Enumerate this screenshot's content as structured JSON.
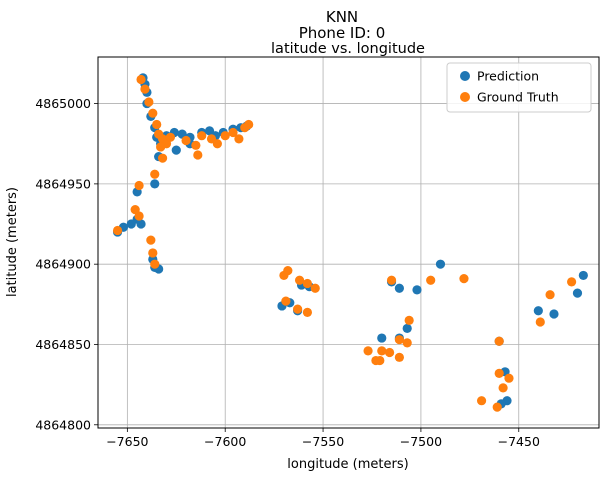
{
  "figure": {
    "suptitle_line1": "KNN",
    "suptitle_line2": "Phone ID: 0"
  },
  "chart_data": {
    "type": "scatter",
    "title": "latitude vs. longitude",
    "xlabel": "longitude (meters)",
    "ylabel": "latitude (meters)",
    "xlim": [
      -7665,
      -7409
    ],
    "ylim": [
      4864798,
      4865029
    ],
    "x_ticks": [
      -7650,
      -7600,
      -7550,
      -7500,
      -7450
    ],
    "y_ticks": [
      4864800,
      4864850,
      4864900,
      4864950,
      4865000
    ],
    "x_tick_labels": [
      "−7650",
      "−7600",
      "−7550",
      "−7500",
      "−7450"
    ],
    "y_tick_labels": [
      "4864800",
      "4864850",
      "4864900",
      "4864950",
      "4865000"
    ],
    "grid": true,
    "legend_position": "top-right",
    "series": [
      {
        "name": "Prediction",
        "color": "#1f77b4",
        "points": [
          [
            -7642,
            4865016
          ],
          [
            -7641,
            4865012
          ],
          [
            -7640,
            4865007
          ],
          [
            -7640,
            4865000
          ],
          [
            -7638,
            4864992
          ],
          [
            -7636,
            4864985
          ],
          [
            -7635,
            4864979
          ],
          [
            -7633,
            4864975
          ],
          [
            -7634,
            4864967
          ],
          [
            -7630,
            4864980
          ],
          [
            -7626,
            4864982
          ],
          [
            -7622,
            4864981
          ],
          [
            -7618,
            4864979
          ],
          [
            -7612,
            4864982
          ],
          [
            -7608,
            4864983
          ],
          [
            -7605,
            4864980
          ],
          [
            -7601,
            4864982
          ],
          [
            -7596,
            4864984
          ],
          [
            -7592,
            4864985
          ],
          [
            -7589,
            4864986
          ],
          [
            -7625,
            4864971
          ],
          [
            -7618,
            4864975
          ],
          [
            -7645,
            4864945
          ],
          [
            -7636,
            4864950
          ],
          [
            -7645,
            4864928
          ],
          [
            -7643,
            4864925
          ],
          [
            -7648,
            4864925
          ],
          [
            -7652,
            4864923
          ],
          [
            -7655,
            4864920
          ],
          [
            -7637,
            4864903
          ],
          [
            -7636,
            4864898
          ],
          [
            -7634,
            4864897
          ],
          [
            -7571,
            4864874
          ],
          [
            -7567,
            4864876
          ],
          [
            -7563,
            4864871
          ],
          [
            -7561,
            4864887
          ],
          [
            -7557,
            4864886
          ],
          [
            -7515,
            4864889
          ],
          [
            -7511,
            4864885
          ],
          [
            -7502,
            4864884
          ],
          [
            -7490,
            4864900
          ],
          [
            -7520,
            4864854
          ],
          [
            -7507,
            4864860
          ],
          [
            -7511,
            4864854
          ],
          [
            -7460,
            4864852
          ],
          [
            -7457,
            4864833
          ],
          [
            -7456,
            4864815
          ],
          [
            -7459,
            4864813
          ],
          [
            -7440,
            4864871
          ],
          [
            -7432,
            4864869
          ],
          [
            -7420,
            4864882
          ],
          [
            -7417,
            4864893
          ]
        ]
      },
      {
        "name": "Ground Truth",
        "color": "#ff7f0e",
        "points": [
          [
            -7643,
            4865015
          ],
          [
            -7641,
            4865009
          ],
          [
            -7639,
            4865001
          ],
          [
            -7637,
            4864994
          ],
          [
            -7635,
            4864987
          ],
          [
            -7634,
            4864981
          ],
          [
            -7632,
            4864978
          ],
          [
            -7630,
            4864975
          ],
          [
            -7633,
            4864973
          ],
          [
            -7632,
            4864966
          ],
          [
            -7628,
            4864979
          ],
          [
            -7620,
            4864977
          ],
          [
            -7615,
            4864974
          ],
          [
            -7614,
            4864968
          ],
          [
            -7612,
            4864980
          ],
          [
            -7607,
            4864978
          ],
          [
            -7604,
            4864975
          ],
          [
            -7600,
            4864980
          ],
          [
            -7596,
            4864982
          ],
          [
            -7593,
            4864978
          ],
          [
            -7590,
            4864985
          ],
          [
            -7588,
            4864987
          ],
          [
            -7644,
            4864949
          ],
          [
            -7636,
            4864956
          ],
          [
            -7646,
            4864934
          ],
          [
            -7644,
            4864930
          ],
          [
            -7655,
            4864921
          ],
          [
            -7638,
            4864915
          ],
          [
            -7637,
            4864907
          ],
          [
            -7636,
            4864900
          ],
          [
            -7570,
            4864893
          ],
          [
            -7568,
            4864896
          ],
          [
            -7569,
            4864877
          ],
          [
            -7562,
            4864890
          ],
          [
            -7558,
            4864888
          ],
          [
            -7554,
            4864885
          ],
          [
            -7563,
            4864872
          ],
          [
            -7558,
            4864870
          ],
          [
            -7527,
            4864846
          ],
          [
            -7523,
            4864840
          ],
          [
            -7520,
            4864846
          ],
          [
            -7516,
            4864845
          ],
          [
            -7521,
            4864840
          ],
          [
            -7511,
            4864853
          ],
          [
            -7511,
            4864842
          ],
          [
            -7507,
            4864851
          ],
          [
            -7506,
            4864865
          ],
          [
            -7515,
            4864890
          ],
          [
            -7495,
            4864890
          ],
          [
            -7478,
            4864891
          ],
          [
            -7469,
            4864815
          ],
          [
            -7461,
            4864811
          ],
          [
            -7460,
            4864832
          ],
          [
            -7458,
            4864823
          ],
          [
            -7455,
            4864829
          ],
          [
            -7460,
            4864852
          ],
          [
            -7439,
            4864864
          ],
          [
            -7434,
            4864881
          ],
          [
            -7423,
            4864889
          ]
        ]
      }
    ]
  }
}
